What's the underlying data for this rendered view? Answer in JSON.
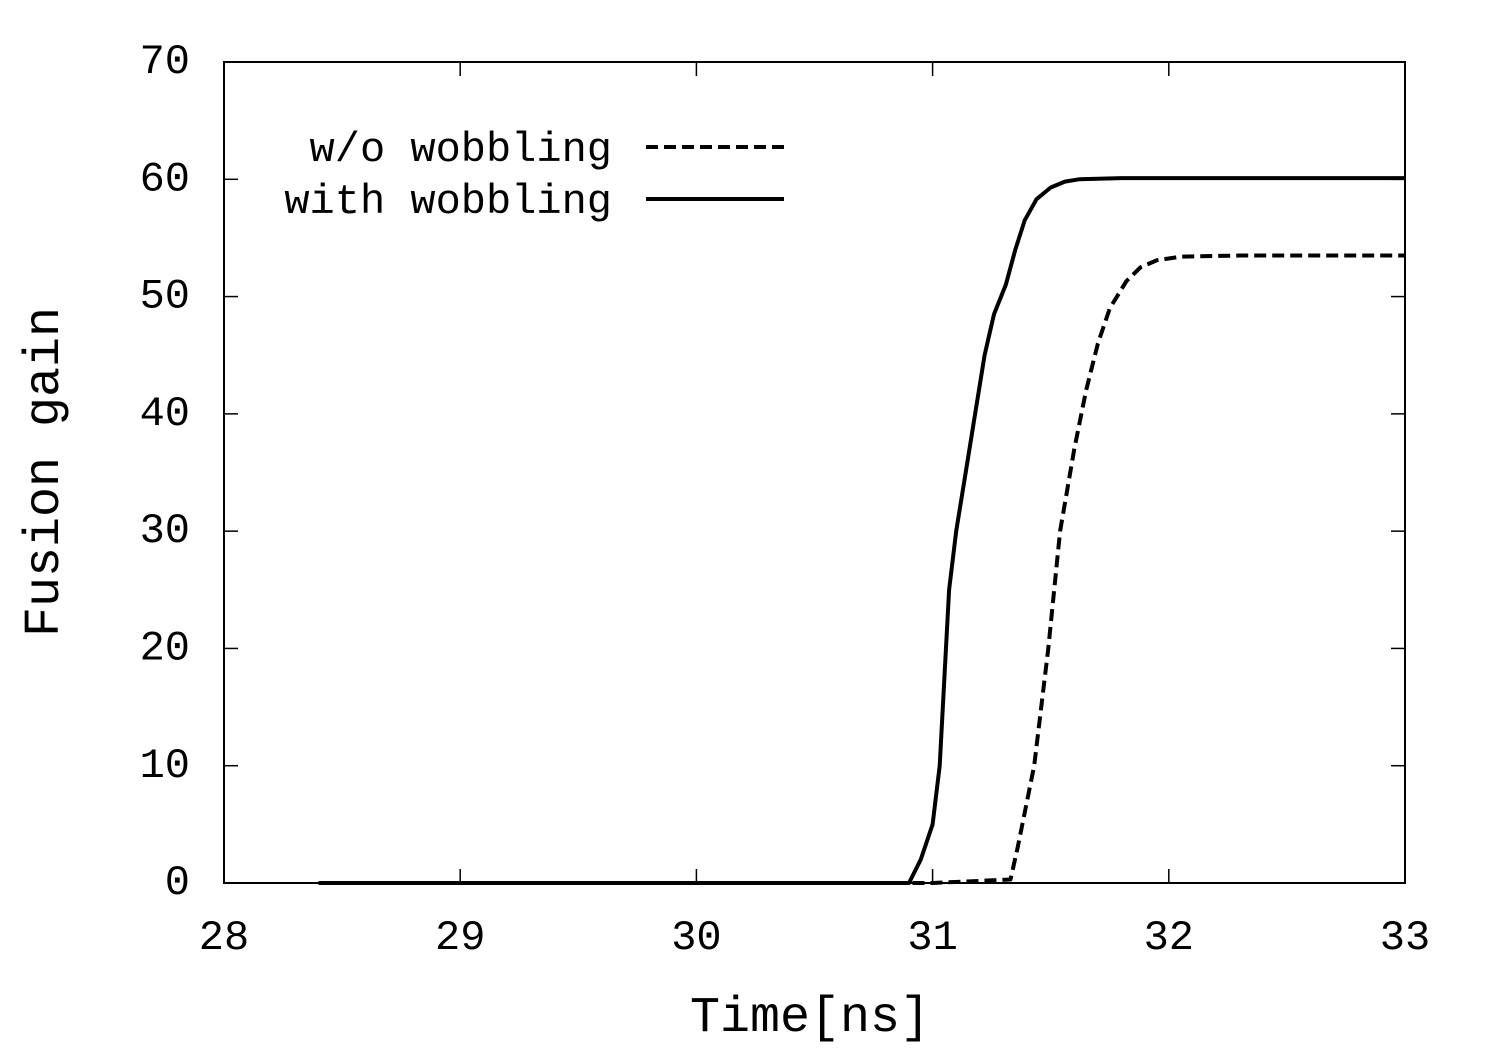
{
  "chart_data": {
    "type": "line",
    "xlabel": "Time[ns]",
    "ylabel": "Fusion gain",
    "xlim": [
      28,
      33
    ],
    "ylim": [
      0,
      70
    ],
    "xticks": [
      28,
      29,
      30,
      31,
      32,
      33
    ],
    "yticks": [
      0,
      10,
      20,
      30,
      40,
      50,
      60,
      70
    ],
    "legend": "top-left",
    "series": [
      {
        "name": "w/o wobbling",
        "color": "#000000",
        "dash": true,
        "x": [
          28.4,
          31.0,
          31.33,
          31.36,
          31.43,
          31.49,
          31.54,
          31.6,
          31.65,
          31.7,
          31.75,
          31.82,
          31.88,
          31.95,
          32.05,
          32.3,
          33.0
        ],
        "values": [
          0,
          0,
          0.3,
          3,
          10,
          20,
          30,
          37,
          42,
          46,
          49,
          51.3,
          52.5,
          53.1,
          53.4,
          53.5,
          53.5
        ]
      },
      {
        "name": "with wobbling",
        "color": "#000000",
        "dash": false,
        "x": [
          28.4,
          30.9,
          30.95,
          31.0,
          31.03,
          31.07,
          31.1,
          31.14,
          31.18,
          31.22,
          31.26,
          31.31,
          31.35,
          31.39,
          31.44,
          31.5,
          31.56,
          31.62,
          31.8,
          33.0
        ],
        "values": [
          0,
          0,
          2,
          5,
          10,
          25,
          30,
          35,
          40,
          45,
          48.5,
          51,
          54,
          56.5,
          58.3,
          59.3,
          59.8,
          60,
          60.1,
          60.1
        ]
      }
    ]
  }
}
